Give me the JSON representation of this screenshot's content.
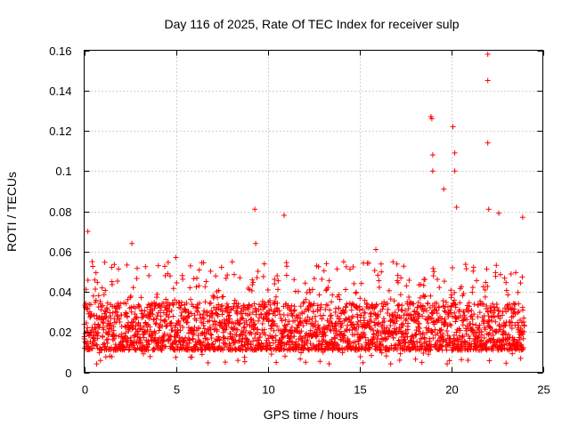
{
  "chart_data": {
    "type": "scatter",
    "title": "Day 116 of 2025, Rate Of TEC Index for receiver sulp",
    "xlabel": "GPS time / hours",
    "ylabel": "ROTI / TECUs",
    "xlim": [
      0,
      25
    ],
    "ylim": [
      0,
      0.16
    ],
    "xticks": [
      0,
      5,
      10,
      15,
      20,
      25
    ],
    "xtick_labels": [
      "0",
      "5",
      "10",
      "15",
      "20",
      "25"
    ],
    "yticks": [
      0,
      0.02,
      0.04,
      0.06,
      0.08,
      0.1,
      0.12,
      0.14,
      0.16
    ],
    "ytick_labels": [
      "0",
      "0.02",
      "0.04",
      "0.06",
      "0.08",
      "0.1",
      "0.12",
      "0.14",
      "0.16"
    ],
    "grid": true,
    "marker": "+",
    "color": "#ff0000",
    "series": [
      {
        "name": "ROTI",
        "x_range": [
          0,
          24
        ],
        "baseline_band": [
          0.005,
          0.035
        ],
        "notable_points": [
          {
            "x": 0.2,
            "y": 0.07
          },
          {
            "x": 2.6,
            "y": 0.064
          },
          {
            "x": 5.0,
            "y": 0.057
          },
          {
            "x": 9.3,
            "y": 0.081
          },
          {
            "x": 9.35,
            "y": 0.064
          },
          {
            "x": 10.9,
            "y": 0.078
          },
          {
            "x": 15.9,
            "y": 0.061
          },
          {
            "x": 17.2,
            "y": 0.006
          },
          {
            "x": 18.9,
            "y": 0.127
          },
          {
            "x": 18.95,
            "y": 0.126
          },
          {
            "x": 19.0,
            "y": 0.108
          },
          {
            "x": 19.0,
            "y": 0.1
          },
          {
            "x": 19.6,
            "y": 0.091
          },
          {
            "x": 20.1,
            "y": 0.122
          },
          {
            "x": 20.2,
            "y": 0.109
          },
          {
            "x": 20.2,
            "y": 0.1
          },
          {
            "x": 20.3,
            "y": 0.082
          },
          {
            "x": 22.0,
            "y": 0.158
          },
          {
            "x": 22.0,
            "y": 0.145
          },
          {
            "x": 22.0,
            "y": 0.114
          },
          {
            "x": 22.05,
            "y": 0.081
          },
          {
            "x": 22.6,
            "y": 0.079
          },
          {
            "x": 23.9,
            "y": 0.077
          }
        ]
      }
    ]
  }
}
